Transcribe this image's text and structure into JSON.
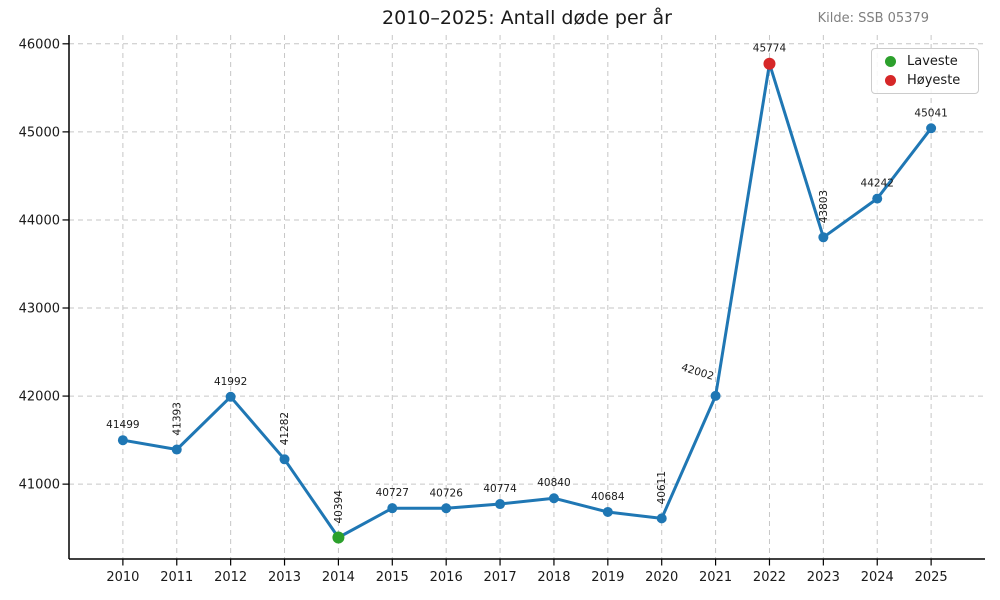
{
  "chart_data": {
    "type": "line",
    "title": "2010–2025: Antall døde per år",
    "source": "Kilde: SSB 05379",
    "x": [
      2010,
      2011,
      2012,
      2013,
      2014,
      2015,
      2016,
      2017,
      2018,
      2019,
      2020,
      2021,
      2022,
      2023,
      2024,
      2025
    ],
    "values": [
      41499,
      41393,
      41992,
      41282,
      40394,
      40727,
      40726,
      40774,
      40840,
      40684,
      40611,
      42002,
      45774,
      43803,
      44242,
      45041
    ],
    "point_labels": [
      "41499",
      "41393",
      "41992",
      "41282",
      "40394",
      "40727",
      "40726",
      "40774",
      "40840",
      "40684",
      "40611",
      "42002",
      "45774",
      "43803",
      "44242",
      "45041"
    ],
    "label_rotation": [
      0,
      90,
      0,
      90,
      90,
      0,
      0,
      0,
      0,
      0,
      90,
      17,
      0,
      90,
      0,
      0
    ],
    "min_year": 2014,
    "max_year": 2022,
    "legend": [
      {
        "label": "Laveste",
        "color": "#2ca02c"
      },
      {
        "label": "Høyeste",
        "color": "#d62728"
      }
    ],
    "legend_position": "upper right",
    "colors": {
      "line": "#1f77b4",
      "min_marker": "#2ca02c",
      "max_marker": "#d62728",
      "grid": "#c6c6c6",
      "axis": "#000000",
      "tick_text": "#1a1a1a",
      "source_text": "#7f7f7f"
    },
    "xlim": [
      2009,
      2026
    ],
    "ylim": [
      40150,
      46100
    ],
    "xticks": [
      2010,
      2011,
      2012,
      2013,
      2014,
      2015,
      2016,
      2017,
      2018,
      2019,
      2020,
      2021,
      2022,
      2023,
      2024,
      2025
    ],
    "yticks": [
      41000,
      42000,
      43000,
      44000,
      45000,
      46000
    ],
    "grid": true
  }
}
